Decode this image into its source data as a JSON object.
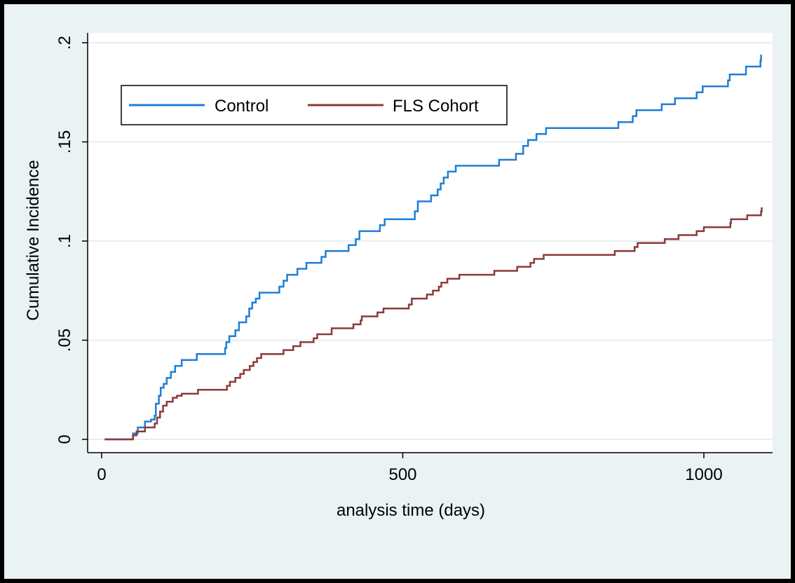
{
  "chart_data": {
    "type": "line",
    "step": true,
    "xlabel": "analysis time (days)",
    "ylabel": "Cumulative Incidence",
    "xlim": [
      0,
      1120
    ],
    "ylim": [
      0,
      0.2
    ],
    "x_ticks": [
      {
        "value": 0,
        "label": "0"
      },
      {
        "value": 500,
        "label": "500"
      },
      {
        "value": 1000,
        "label": "1000"
      }
    ],
    "y_ticks": [
      {
        "value": 0,
        "label": "0"
      },
      {
        "value": 0.05,
        "label": ".05"
      },
      {
        "value": 0.1,
        "label": ".1"
      },
      {
        "value": 0.15,
        "label": ".15"
      },
      {
        "value": 0.2,
        "label": ".2"
      }
    ],
    "grid": true,
    "legend_position": "top-left",
    "series": [
      {
        "name": "Control",
        "color": "#1f7ed4",
        "points": [
          [
            5,
            0
          ],
          [
            48,
            0
          ],
          [
            52,
            0.003
          ],
          [
            60,
            0.006
          ],
          [
            72,
            0.009
          ],
          [
            82,
            0.01
          ],
          [
            88,
            0.012
          ],
          [
            90,
            0.018
          ],
          [
            95,
            0.022
          ],
          [
            98,
            0.026
          ],
          [
            103,
            0.028
          ],
          [
            108,
            0.031
          ],
          [
            115,
            0.034
          ],
          [
            122,
            0.037
          ],
          [
            133,
            0.04
          ],
          [
            158,
            0.043
          ],
          [
            205,
            0.046
          ],
          [
            207,
            0.049
          ],
          [
            212,
            0.052
          ],
          [
            222,
            0.055
          ],
          [
            228,
            0.059
          ],
          [
            240,
            0.062
          ],
          [
            245,
            0.066
          ],
          [
            250,
            0.069
          ],
          [
            256,
            0.071
          ],
          [
            262,
            0.074
          ],
          [
            295,
            0.077
          ],
          [
            302,
            0.08
          ],
          [
            308,
            0.083
          ],
          [
            325,
            0.086
          ],
          [
            340,
            0.089
          ],
          [
            365,
            0.092
          ],
          [
            372,
            0.095
          ],
          [
            410,
            0.098
          ],
          [
            422,
            0.101
          ],
          [
            428,
            0.105
          ],
          [
            462,
            0.108
          ],
          [
            470,
            0.111
          ],
          [
            520,
            0.115
          ],
          [
            525,
            0.12
          ],
          [
            547,
            0.123
          ],
          [
            558,
            0.126
          ],
          [
            563,
            0.129
          ],
          [
            568,
            0.132
          ],
          [
            575,
            0.135
          ],
          [
            588,
            0.138
          ],
          [
            660,
            0.141
          ],
          [
            688,
            0.144
          ],
          [
            700,
            0.148
          ],
          [
            708,
            0.151
          ],
          [
            722,
            0.154
          ],
          [
            738,
            0.157
          ],
          [
            858,
            0.16
          ],
          [
            882,
            0.163
          ],
          [
            888,
            0.166
          ],
          [
            930,
            0.169
          ],
          [
            952,
            0.172
          ],
          [
            988,
            0.175
          ],
          [
            998,
            0.178
          ],
          [
            1040,
            0.181
          ],
          [
            1043,
            0.184
          ],
          [
            1070,
            0.188
          ],
          [
            1094,
            0.191
          ],
          [
            1095,
            0.194
          ]
        ]
      },
      {
        "name": "FLS Cohort",
        "color": "#8b3a3a",
        "points": [
          [
            5,
            0
          ],
          [
            48,
            0
          ],
          [
            52,
            0.002
          ],
          [
            58,
            0.004
          ],
          [
            72,
            0.006
          ],
          [
            88,
            0.008
          ],
          [
            92,
            0.011
          ],
          [
            97,
            0.014
          ],
          [
            102,
            0.017
          ],
          [
            108,
            0.019
          ],
          [
            118,
            0.021
          ],
          [
            125,
            0.022
          ],
          [
            133,
            0.023
          ],
          [
            160,
            0.025
          ],
          [
            208,
            0.027
          ],
          [
            213,
            0.029
          ],
          [
            222,
            0.031
          ],
          [
            230,
            0.033
          ],
          [
            236,
            0.035
          ],
          [
            246,
            0.037
          ],
          [
            252,
            0.039
          ],
          [
            258,
            0.041
          ],
          [
            265,
            0.043
          ],
          [
            302,
            0.045
          ],
          [
            318,
            0.047
          ],
          [
            330,
            0.049
          ],
          [
            352,
            0.051
          ],
          [
            358,
            0.053
          ],
          [
            382,
            0.056
          ],
          [
            418,
            0.058
          ],
          [
            430,
            0.06
          ],
          [
            432,
            0.062
          ],
          [
            458,
            0.064
          ],
          [
            468,
            0.066
          ],
          [
            510,
            0.068
          ],
          [
            515,
            0.071
          ],
          [
            540,
            0.073
          ],
          [
            550,
            0.075
          ],
          [
            560,
            0.077
          ],
          [
            564,
            0.079
          ],
          [
            574,
            0.081
          ],
          [
            594,
            0.083
          ],
          [
            652,
            0.085
          ],
          [
            690,
            0.087
          ],
          [
            712,
            0.089
          ],
          [
            718,
            0.091
          ],
          [
            734,
            0.093
          ],
          [
            852,
            0.095
          ],
          [
            885,
            0.097
          ],
          [
            890,
            0.099
          ],
          [
            935,
            0.101
          ],
          [
            958,
            0.103
          ],
          [
            988,
            0.105
          ],
          [
            1000,
            0.107
          ],
          [
            1044,
            0.109
          ],
          [
            1045,
            0.111
          ],
          [
            1072,
            0.113
          ],
          [
            1095,
            0.115
          ],
          [
            1096,
            0.117
          ]
        ]
      }
    ]
  }
}
